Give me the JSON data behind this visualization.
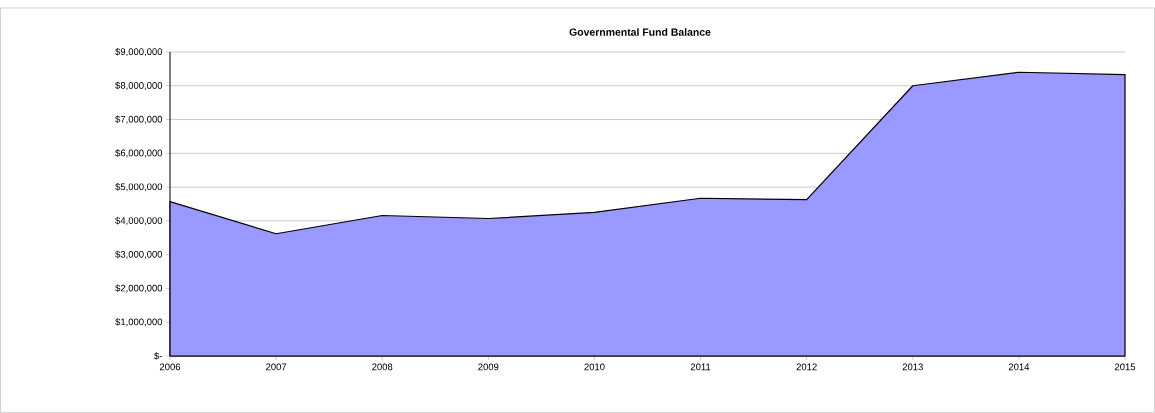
{
  "chart_data": {
    "type": "area",
    "title": "Governmental Fund Balance",
    "categories": [
      "2006",
      "2007",
      "2008",
      "2009",
      "2010",
      "2011",
      "2012",
      "2013",
      "2014",
      "2015"
    ],
    "values": [
      4570000,
      3620000,
      4160000,
      4070000,
      4250000,
      4670000,
      4630000,
      8000000,
      8400000,
      8330000
    ],
    "color": "#9999ff",
    "ylim": [
      0,
      9000000
    ],
    "yticks": [
      {
        "value": 0,
        "label": "$-"
      },
      {
        "value": 1000000,
        "label": "$1,000,000"
      },
      {
        "value": 2000000,
        "label": "$2,000,000"
      },
      {
        "value": 3000000,
        "label": "$3,000,000"
      },
      {
        "value": 4000000,
        "label": "$4,000,000"
      },
      {
        "value": 5000000,
        "label": "$5,000,000"
      },
      {
        "value": 6000000,
        "label": "$6,000,000"
      },
      {
        "value": 7000000,
        "label": "$7,000,000"
      },
      {
        "value": 8000000,
        "label": "$8,000,000"
      },
      {
        "value": 9000000,
        "label": "$9,000,000"
      }
    ],
    "grid": "y"
  }
}
